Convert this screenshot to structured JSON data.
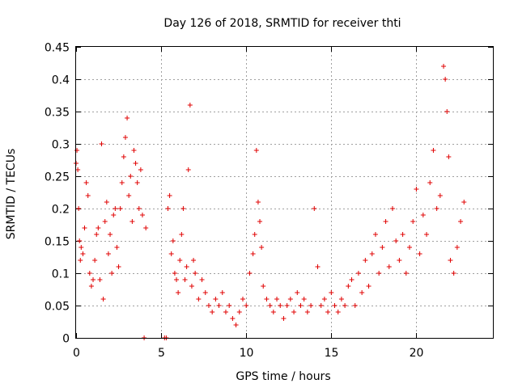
{
  "chart_data": {
    "type": "scatter",
    "title": "Day 126 of 2018, SRMTID for receiver thti",
    "xlabel": "GPS time / hours",
    "ylabel": "SRMTID / TECUs",
    "xlim": [
      0,
      24.5
    ],
    "ylim": [
      0,
      0.45
    ],
    "xticks": [
      0,
      5,
      10,
      15,
      20
    ],
    "xtick_labels": [
      "0",
      "5",
      "10",
      "15",
      "20"
    ],
    "yticks": [
      0,
      0.05,
      0.1,
      0.15,
      0.2,
      0.25,
      0.3,
      0.35,
      0.4,
      0.45
    ],
    "ytick_labels": [
      "0",
      "0.05",
      "0.1",
      "0.15",
      "0.2",
      "0.25",
      "0.3",
      "0.35",
      "0.4",
      "0.45"
    ],
    "grid": true,
    "marker": "+",
    "color": "#e00000",
    "series": [
      {
        "name": "SRMTID",
        "x": [
          0.0,
          0.05,
          0.1,
          0.15,
          0.2,
          0.25,
          0.3,
          0.4,
          0.5,
          0.6,
          0.7,
          0.8,
          0.9,
          1.0,
          1.1,
          1.2,
          1.3,
          1.4,
          1.5,
          1.6,
          1.7,
          1.8,
          1.9,
          2.0,
          2.1,
          2.2,
          2.3,
          2.4,
          2.5,
          2.6,
          2.7,
          2.8,
          2.9,
          3.0,
          3.1,
          3.2,
          3.3,
          3.4,
          3.5,
          3.6,
          3.7,
          3.8,
          3.9,
          4.0,
          4.1,
          5.2,
          5.3,
          5.4,
          5.5,
          5.6,
          5.7,
          5.8,
          5.9,
          6.0,
          6.1,
          6.2,
          6.3,
          6.4,
          6.5,
          6.6,
          6.7,
          6.8,
          6.9,
          7.0,
          7.2,
          7.4,
          7.6,
          7.8,
          8.0,
          8.2,
          8.4,
          8.6,
          8.8,
          9.0,
          9.2,
          9.4,
          9.6,
          9.8,
          10.0,
          10.2,
          10.4,
          10.5,
          10.6,
          10.7,
          10.8,
          10.9,
          11.0,
          11.2,
          11.4,
          11.6,
          11.8,
          12.0,
          12.2,
          12.4,
          12.6,
          12.8,
          13.0,
          13.2,
          13.4,
          13.6,
          13.8,
          14.0,
          14.2,
          14.4,
          14.6,
          14.8,
          15.0,
          15.2,
          15.4,
          15.6,
          15.8,
          16.0,
          16.2,
          16.4,
          16.6,
          16.8,
          17.0,
          17.2,
          17.4,
          17.6,
          17.8,
          18.0,
          18.2,
          18.4,
          18.6,
          18.8,
          19.0,
          19.2,
          19.4,
          19.6,
          19.8,
          20.0,
          20.2,
          20.4,
          20.6,
          20.8,
          21.0,
          21.2,
          21.4,
          21.6,
          21.7,
          21.8,
          21.9,
          22.0,
          22.2,
          22.4,
          22.6,
          22.8
        ],
        "y": [
          0.27,
          0.29,
          0.26,
          0.2,
          0.15,
          0.12,
          0.14,
          0.13,
          0.17,
          0.24,
          0.22,
          0.1,
          0.08,
          0.09,
          0.12,
          0.16,
          0.17,
          0.09,
          0.3,
          0.06,
          0.18,
          0.21,
          0.13,
          0.16,
          0.1,
          0.19,
          0.2,
          0.14,
          0.11,
          0.2,
          0.24,
          0.28,
          0.31,
          0.34,
          0.22,
          0.25,
          0.18,
          0.29,
          0.27,
          0.24,
          0.2,
          0.26,
          0.19,
          0.0,
          0.17,
          0.0,
          0.0,
          0.2,
          0.22,
          0.13,
          0.15,
          0.1,
          0.09,
          0.07,
          0.12,
          0.16,
          0.2,
          0.09,
          0.11,
          0.26,
          0.36,
          0.08,
          0.12,
          0.1,
          0.06,
          0.09,
          0.07,
          0.05,
          0.04,
          0.06,
          0.05,
          0.07,
          0.04,
          0.05,
          0.03,
          0.02,
          0.04,
          0.06,
          0.05,
          0.1,
          0.13,
          0.16,
          0.29,
          0.21,
          0.18,
          0.14,
          0.08,
          0.06,
          0.05,
          0.04,
          0.06,
          0.05,
          0.03,
          0.05,
          0.06,
          0.04,
          0.07,
          0.05,
          0.06,
          0.04,
          0.05,
          0.2,
          0.11,
          0.05,
          0.06,
          0.04,
          0.07,
          0.05,
          0.04,
          0.06,
          0.05,
          0.08,
          0.09,
          0.05,
          0.1,
          0.07,
          0.12,
          0.08,
          0.13,
          0.16,
          0.1,
          0.14,
          0.18,
          0.11,
          0.2,
          0.15,
          0.12,
          0.16,
          0.1,
          0.14,
          0.18,
          0.23,
          0.13,
          0.19,
          0.16,
          0.24,
          0.29,
          0.2,
          0.22,
          0.42,
          0.4,
          0.35,
          0.28,
          0.12,
          0.1,
          0.14,
          0.18,
          0.21
        ]
      }
    ]
  }
}
